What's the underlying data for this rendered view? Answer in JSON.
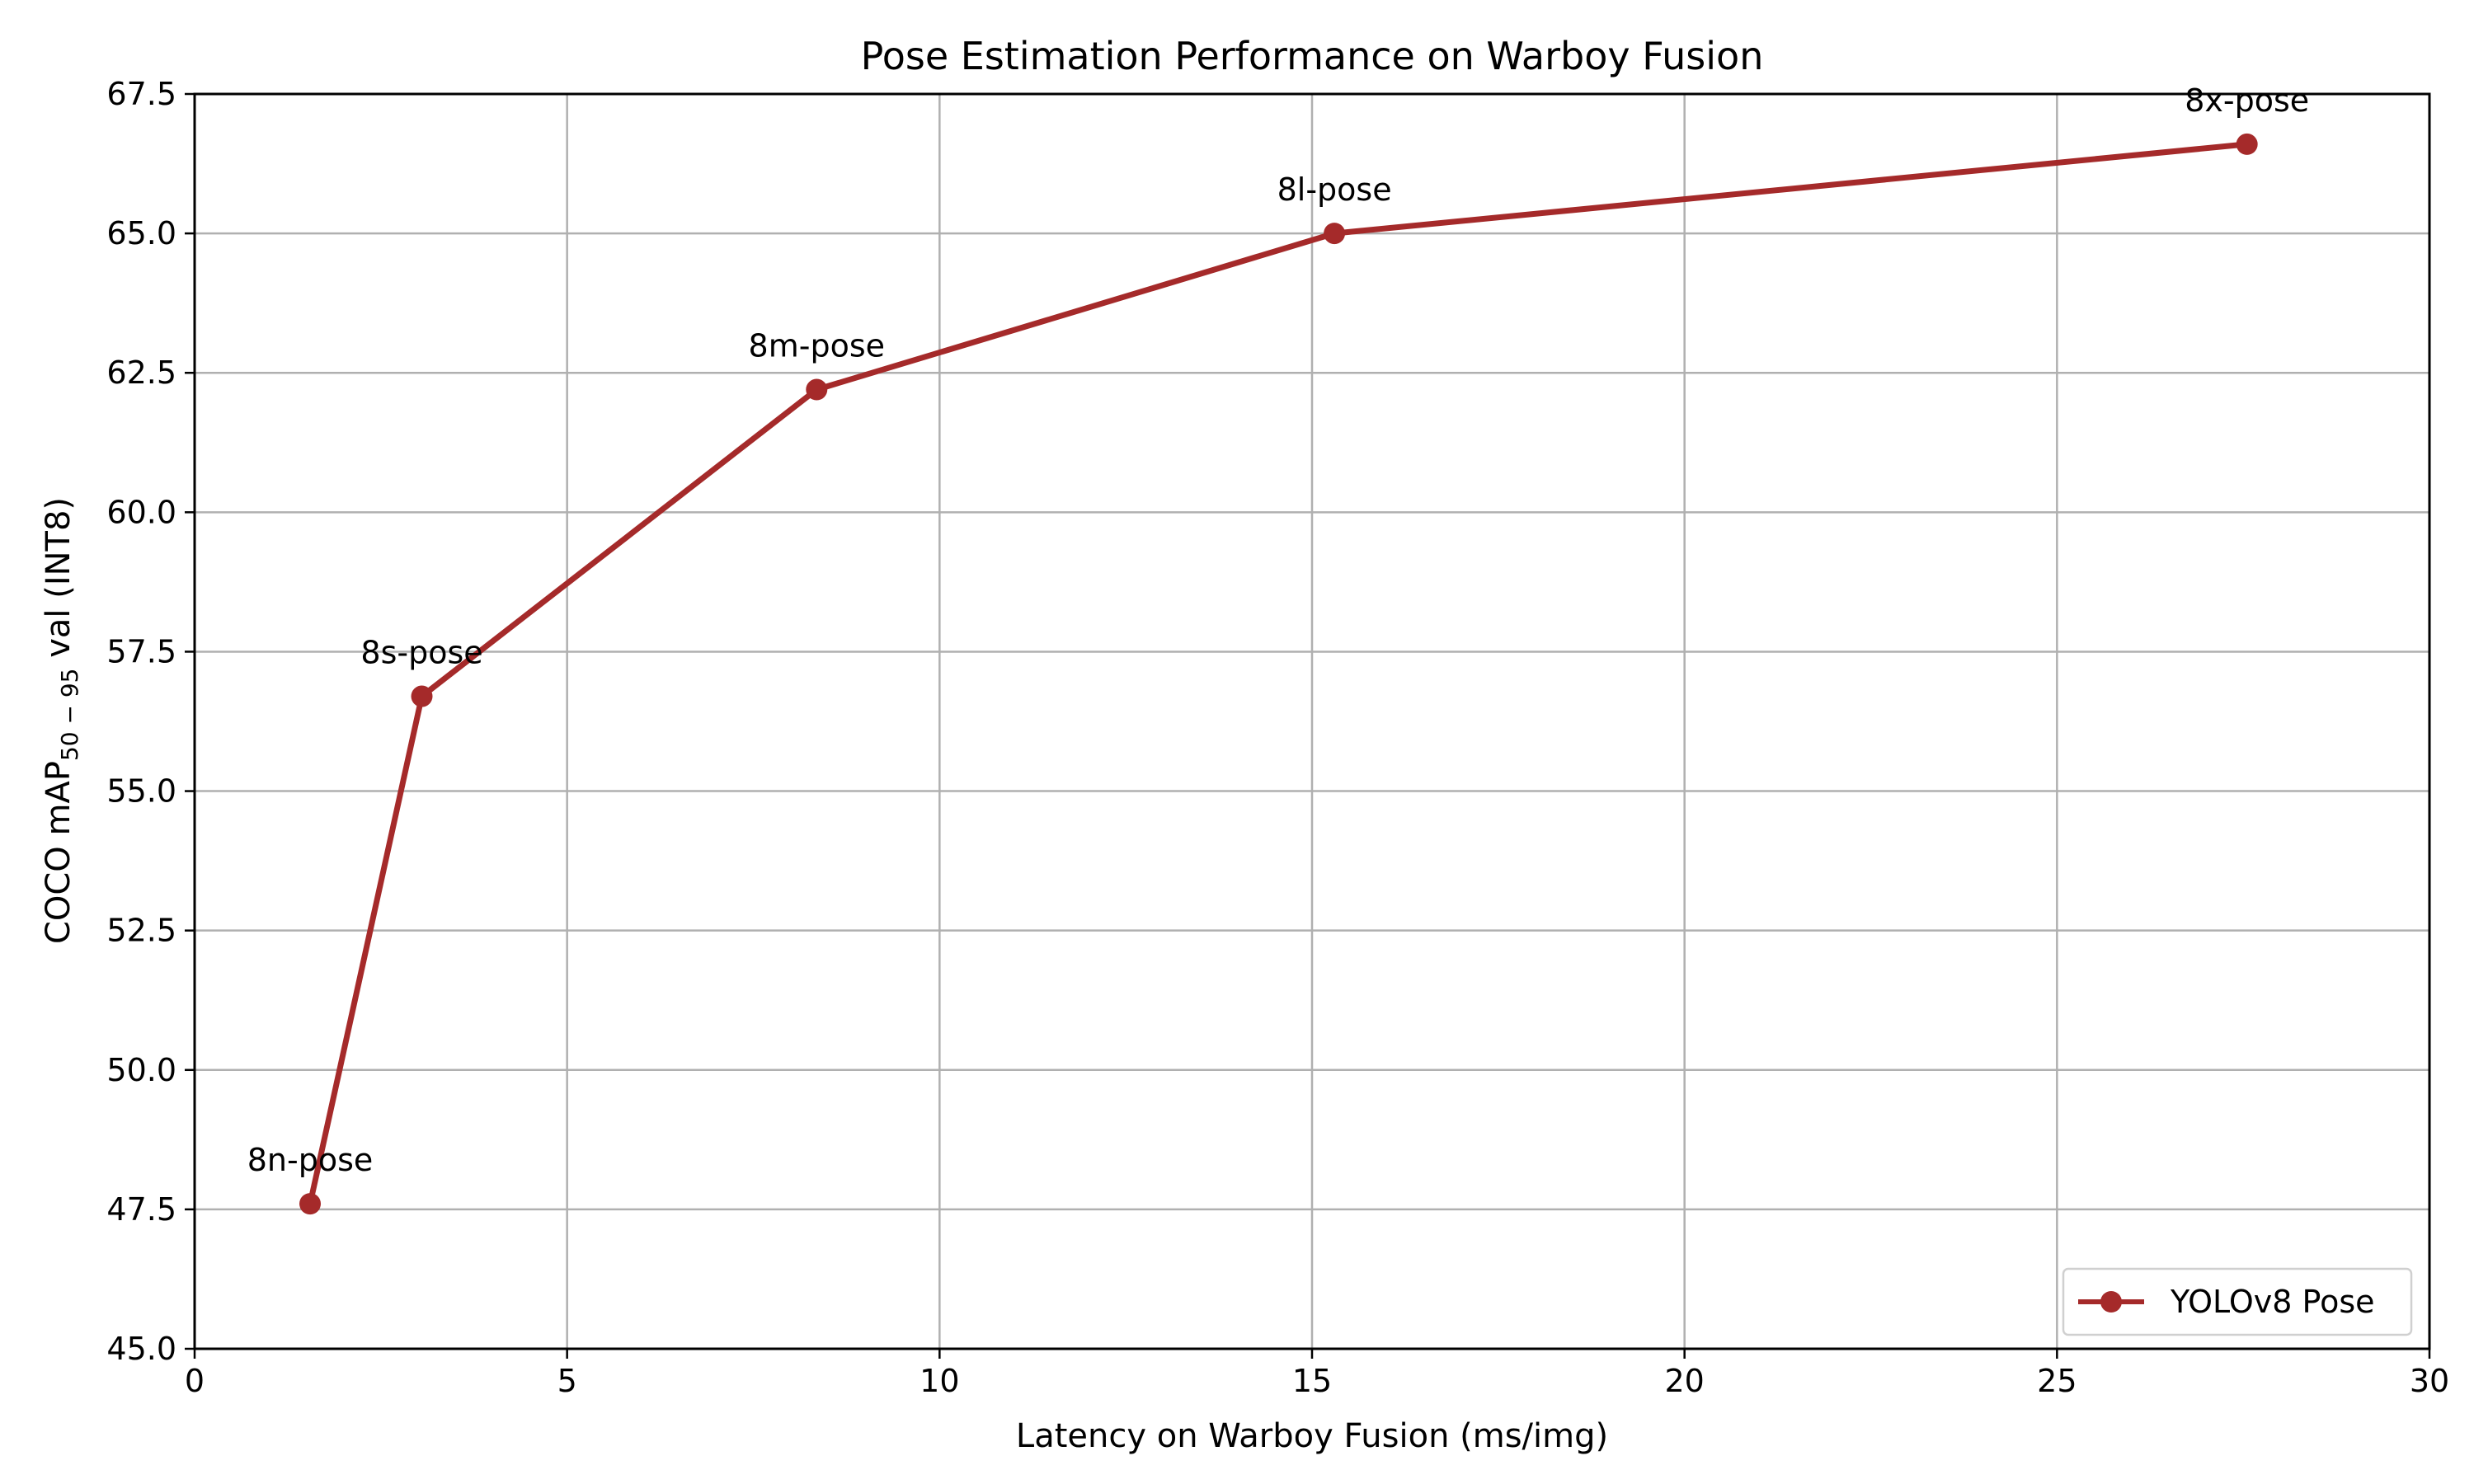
{
  "chart_data": {
    "type": "line",
    "title": "Pose Estimation Performance on Warboy Fusion",
    "xlabel": "Latency on Warboy Fusion (ms/img)",
    "ylabel_main": "COCO mAP",
    "ylabel_sub": "50 − 95",
    "ylabel_tail": " val (INT8)",
    "xlim": [
      0,
      30
    ],
    "ylim": [
      45.0,
      67.5
    ],
    "x_ticks": [
      0,
      5,
      10,
      15,
      20,
      25,
      30
    ],
    "y_ticks": [
      45.0,
      47.5,
      50.0,
      52.5,
      55.0,
      57.5,
      60.0,
      62.5,
      65.0,
      67.5
    ],
    "x_tick_labels": [
      "0",
      "5",
      "10",
      "15",
      "20",
      "25",
      "30"
    ],
    "y_tick_labels": [
      "45.0",
      "47.5",
      "50.0",
      "52.5",
      "55.0",
      "57.5",
      "60.0",
      "62.5",
      "65.0",
      "67.5"
    ],
    "grid": true,
    "legend_position": "lower-right",
    "series": [
      {
        "name": "YOLOv8 Pose",
        "color": "#a52a2a",
        "marker": "circle",
        "points": [
          {
            "label": "8n-pose",
            "x": 1.55,
            "y": 47.6
          },
          {
            "label": "8s-pose",
            "x": 3.05,
            "y": 56.7
          },
          {
            "label": "8m-pose",
            "x": 8.35,
            "y": 62.2
          },
          {
            "label": "8l-pose",
            "x": 15.3,
            "y": 65.0
          },
          {
            "label": "8x-pose",
            "x": 27.55,
            "y": 66.6
          }
        ]
      }
    ]
  }
}
